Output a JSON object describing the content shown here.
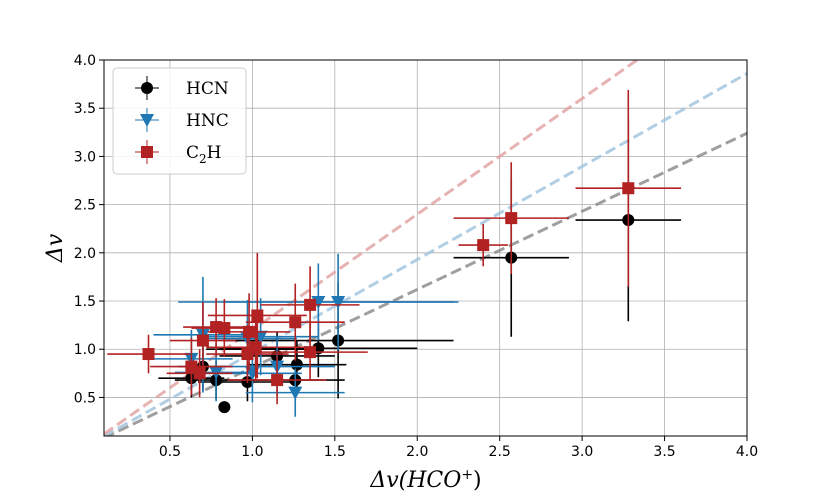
{
  "chart_data": {
    "type": "scatter",
    "title": "",
    "xlabel": "Δv(HCO⁺)",
    "ylabel": "Δv",
    "xlim": [
      0.1,
      4.0
    ],
    "ylim": [
      0.1,
      4.0
    ],
    "xticks": [
      0.5,
      1.0,
      1.5,
      2.0,
      2.5,
      3.0,
      3.5,
      4.0
    ],
    "yticks": [
      0.5,
      1.0,
      1.5,
      2.0,
      2.5,
      3.0,
      3.5,
      4.0
    ],
    "xtick_labels": [
      "0.5",
      "1.0",
      "1.5",
      "2.0",
      "2.5",
      "3.0",
      "3.5",
      "4.0"
    ],
    "ytick_labels": [
      "0.5",
      "1.0",
      "1.5",
      "2.0",
      "2.5",
      "3.0",
      "3.5",
      "4.0"
    ],
    "grid": true,
    "legend_position": "top-left",
    "series": [
      {
        "name": "HCN",
        "marker": "circle",
        "color": "#000000",
        "points": [
          {
            "x": 0.63,
            "y": 0.7,
            "xerr": 0.2,
            "yerr": 0.2
          },
          {
            "x": 0.7,
            "y": 0.82,
            "xerr": 0.15,
            "yerr": 0.25
          },
          {
            "x": 0.78,
            "y": 0.68,
            "xerr": 0.25,
            "yerr": 0.2
          },
          {
            "x": 0.83,
            "y": 0.4,
            "xerr": 0.0,
            "yerr": 0.0
          },
          {
            "x": 0.97,
            "y": 0.66,
            "xerr": 0.3,
            "yerr": 0.2
          },
          {
            "x": 1.02,
            "y": 1.0,
            "xerr": 0.3,
            "yerr": 0.2
          },
          {
            "x": 1.15,
            "y": 0.93,
            "xerr": 0.35,
            "yerr": 0.25
          },
          {
            "x": 1.26,
            "y": 0.68,
            "xerr": 0.3,
            "yerr": 0.2
          },
          {
            "x": 1.27,
            "y": 0.84,
            "xerr": 0.3,
            "yerr": 0.25
          },
          {
            "x": 1.4,
            "y": 1.01,
            "xerr": 0.6,
            "yerr": 0.3
          },
          {
            "x": 1.52,
            "y": 1.09,
            "xerr": 0.7,
            "yerr": 0.6
          },
          {
            "x": 2.57,
            "y": 1.95,
            "xerr": 0.35,
            "yerr": 0.82
          },
          {
            "x": 3.28,
            "y": 2.34,
            "xerr": 0.32,
            "yerr": 1.05
          }
        ]
      },
      {
        "name": "HNC",
        "marker": "triangle-down",
        "color": "#1f77b4",
        "points": [
          {
            "x": 0.63,
            "y": 0.9,
            "xerr": 0.25,
            "yerr": 0.3
          },
          {
            "x": 0.7,
            "y": 1.15,
            "xerr": 0.3,
            "yerr": 0.6
          },
          {
            "x": 0.78,
            "y": 0.76,
            "xerr": 0.25,
            "yerr": 0.3
          },
          {
            "x": 0.97,
            "y": 1.11,
            "xerr": 0.3,
            "yerr": 0.4
          },
          {
            "x": 1.0,
            "y": 0.75,
            "xerr": 0.3,
            "yerr": 0.3
          },
          {
            "x": 1.05,
            "y": 1.13,
            "xerr": 0.35,
            "yerr": 0.4
          },
          {
            "x": 1.15,
            "y": 0.82,
            "xerr": 0.35,
            "yerr": 0.3
          },
          {
            "x": 1.26,
            "y": 0.55,
            "xerr": 0.3,
            "yerr": 0.25
          },
          {
            "x": 1.4,
            "y": 1.49,
            "xerr": 0.85,
            "yerr": 0.4
          },
          {
            "x": 1.52,
            "y": 1.49,
            "xerr": 0.7,
            "yerr": 0.5
          }
        ]
      },
      {
        "name": "C₂H",
        "marker": "square",
        "color": "#b22222",
        "points": [
          {
            "x": 0.37,
            "y": 0.95,
            "xerr": 0.25,
            "yerr": 0.2
          },
          {
            "x": 0.63,
            "y": 0.82,
            "xerr": 0.25,
            "yerr": 0.3
          },
          {
            "x": 0.68,
            "y": 0.75,
            "xerr": 0.2,
            "yerr": 0.25
          },
          {
            "x": 0.7,
            "y": 1.09,
            "xerr": 0.2,
            "yerr": 0.4
          },
          {
            "x": 0.78,
            "y": 1.23,
            "xerr": 0.2,
            "yerr": 0.3
          },
          {
            "x": 0.83,
            "y": 1.22,
            "xerr": 0.2,
            "yerr": 0.3
          },
          {
            "x": 0.97,
            "y": 0.95,
            "xerr": 0.25,
            "yerr": 0.3
          },
          {
            "x": 0.98,
            "y": 1.18,
            "xerr": 0.25,
            "yerr": 0.4
          },
          {
            "x": 1.02,
            "y": 1.02,
            "xerr": 0.3,
            "yerr": 0.35
          },
          {
            "x": 1.03,
            "y": 1.35,
            "xerr": 0.3,
            "yerr": 0.65
          },
          {
            "x": 1.15,
            "y": 0.68,
            "xerr": 0.3,
            "yerr": 0.25
          },
          {
            "x": 1.26,
            "y": 1.28,
            "xerr": 0.3,
            "yerr": 0.4
          },
          {
            "x": 1.35,
            "y": 1.46,
            "xerr": 0.3,
            "yerr": 0.4
          },
          {
            "x": 1.35,
            "y": 0.97,
            "xerr": 0.35,
            "yerr": 0.3
          },
          {
            "x": 2.4,
            "y": 2.08,
            "xerr": 0.15,
            "yerr": 0.22
          },
          {
            "x": 2.57,
            "y": 2.36,
            "xerr": 0.35,
            "yerr": 0.58
          },
          {
            "x": 3.28,
            "y": 2.67,
            "xerr": 0.32,
            "yerr": 1.02
          }
        ]
      }
    ],
    "reference_lines": [
      {
        "color": "#888888",
        "slope": 0.81
      },
      {
        "color": "#9ec4de",
        "slope": 0.965
      },
      {
        "color": "#e0a0a0",
        "slope": 1.2
      }
    ]
  },
  "legend": {
    "items": [
      {
        "label_main": "HCN",
        "label_sub": "",
        "label_tail": ""
      },
      {
        "label_main": "HNC",
        "label_sub": "",
        "label_tail": ""
      },
      {
        "label_main": "C",
        "label_sub": "2",
        "label_tail": "H"
      }
    ]
  },
  "axes": {
    "xlabel_main": "Δv(HCO",
    "xlabel_sup": "+",
    "xlabel_tail": ")",
    "ylabel": "Δv"
  }
}
